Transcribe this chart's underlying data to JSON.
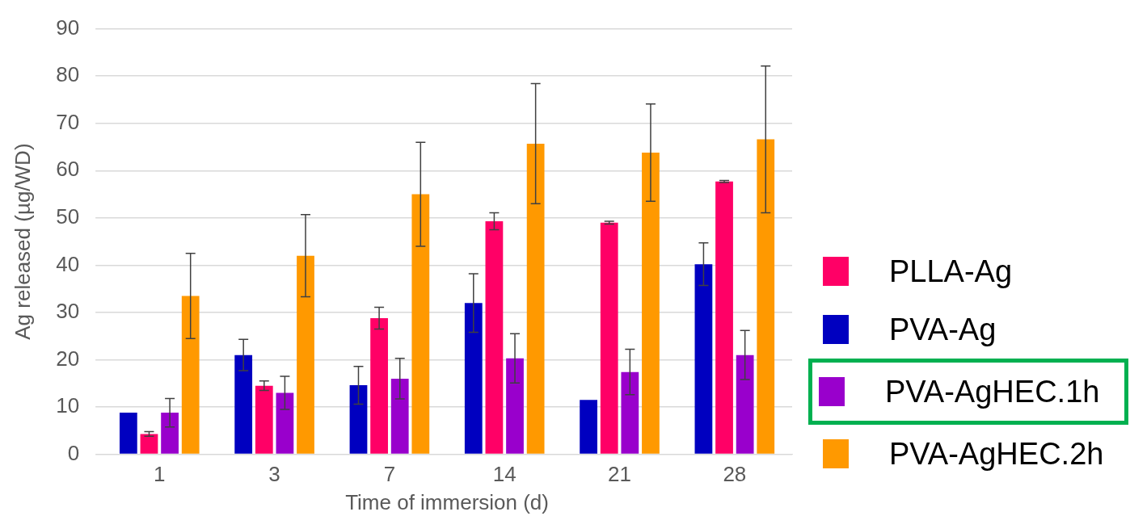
{
  "chart_data": {
    "type": "bar",
    "xlabel": "Time of immersion (d)",
    "ylabel": "Ag released (µg/WD)",
    "categories": [
      "1",
      "3",
      "7",
      "14",
      "21",
      "28"
    ],
    "series": [
      {
        "name": "PVA-Ag",
        "color": "#0000c0",
        "values": [
          8.8,
          21,
          14.6,
          32,
          11.5,
          40.2
        ],
        "errors": [
          null,
          3.3,
          4,
          6.2,
          null,
          4.5
        ]
      },
      {
        "name": "PLLA-Ag",
        "color": "#ff0066",
        "values": [
          4.3,
          14.5,
          28.8,
          49.3,
          49,
          57.7
        ],
        "errors": [
          0.5,
          1,
          2.3,
          1.8,
          0.3,
          0.2
        ]
      },
      {
        "name": "PVA-AgHEC.1h",
        "color": "#9900cc",
        "values": [
          8.8,
          13,
          16,
          20.3,
          17.4,
          21
        ],
        "errors": [
          3,
          3.5,
          4.3,
          5.2,
          4.8,
          5.2
        ]
      },
      {
        "name": "PVA-AgHEC.2h",
        "color": "#ff9900",
        "values": [
          33.5,
          42,
          55,
          65.7,
          63.8,
          66.6
        ],
        "errors": [
          9,
          8.7,
          11,
          12.7,
          10.3,
          15.5
        ]
      }
    ],
    "ylim": [
      0,
      90
    ],
    "yticks": [
      0,
      10,
      20,
      30,
      40,
      50,
      60,
      70,
      80,
      90
    ],
    "grid": "y",
    "legend": "right"
  }
}
